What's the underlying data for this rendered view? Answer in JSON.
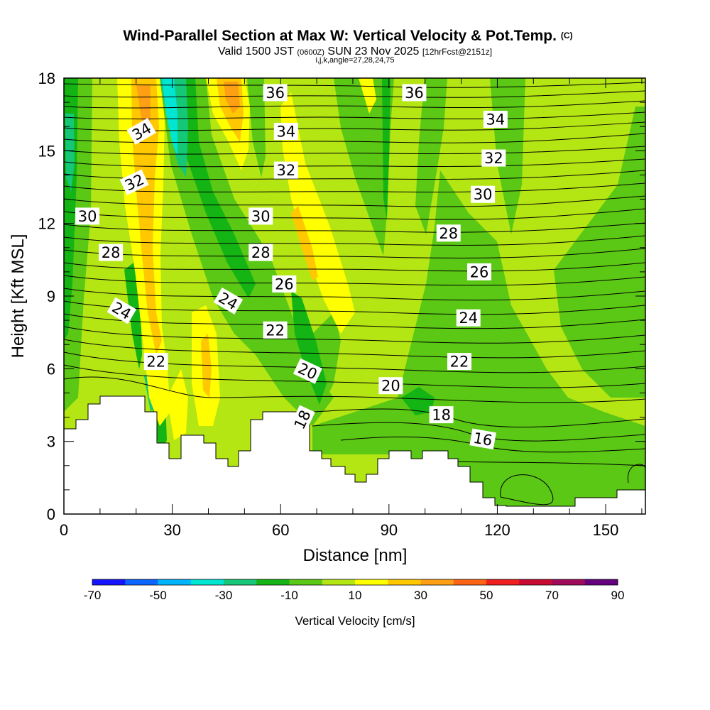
{
  "chart_data": {
    "type": "heatmap",
    "title": "Wind-Parallel Section at Max W: Vertical Velocity & Pot.Temp.",
    "title_mark": "(C)",
    "subtitle": {
      "valid_prefix": "Valid 1500 JST",
      "utc": "(0600Z)",
      "date": "SUN 23 Nov 2025",
      "forecast": "[12hrFcst@2151z]"
    },
    "subtitle2": "i,j,k,angle=27,28,24,75",
    "xlabel": "Distance [nm]",
    "ylabel": "Height [Kft MSL]",
    "xlim": [
      0,
      161
    ],
    "ylim": [
      0,
      18
    ],
    "x_ticks": [
      0,
      30,
      60,
      90,
      120,
      150
    ],
    "y_ticks": [
      0,
      3,
      6,
      9,
      12,
      15,
      18
    ],
    "colorbar": {
      "label": "Vertical Velocity [cm/s]",
      "tick_labels": [
        "-70",
        "-50",
        "-30",
        "-10",
        "10",
        "30",
        "50",
        "70",
        "90"
      ],
      "bounds": [
        -70,
        90
      ],
      "colors": [
        "#1414ff",
        "#0a64ff",
        "#00b4ff",
        "#00e6d2",
        "#14c878",
        "#14b414",
        "#5ac814",
        "#b4e614",
        "#ffff00",
        "#ffc800",
        "#ffa014",
        "#ff6414",
        "#f01e1e",
        "#c80a32",
        "#a00a5a",
        "#64007d"
      ]
    },
    "theta_labels": [
      {
        "text": "36",
        "x": 58.5,
        "y": 17.4,
        "angle": 0
      },
      {
        "text": "36",
        "x": 97,
        "y": 17.4,
        "angle": 0
      },
      {
        "text": "34",
        "x": 21.5,
        "y": 15.8,
        "angle": -30
      },
      {
        "text": "34",
        "x": 61.5,
        "y": 15.8,
        "angle": 0
      },
      {
        "text": "34",
        "x": 119.5,
        "y": 16.3,
        "angle": 0
      },
      {
        "text": "32",
        "x": 19.5,
        "y": 13.7,
        "angle": -25
      },
      {
        "text": "32",
        "x": 61.5,
        "y": 14.2,
        "angle": 0
      },
      {
        "text": "32",
        "x": 119,
        "y": 14.7,
        "angle": 0
      },
      {
        "text": "30",
        "x": 6.5,
        "y": 12.3,
        "angle": 0
      },
      {
        "text": "30",
        "x": 54.5,
        "y": 12.3,
        "angle": 0
      },
      {
        "text": "30",
        "x": 116,
        "y": 13.2,
        "angle": 0
      },
      {
        "text": "28",
        "x": 13,
        "y": 10.8,
        "angle": 0
      },
      {
        "text": "28",
        "x": 54.5,
        "y": 10.8,
        "angle": 0
      },
      {
        "text": "28",
        "x": 106.5,
        "y": 11.6,
        "angle": 0
      },
      {
        "text": "26",
        "x": 61,
        "y": 9.5,
        "angle": 0
      },
      {
        "text": "26",
        "x": 115,
        "y": 10.0,
        "angle": 0
      },
      {
        "text": "24",
        "x": 16,
        "y": 8.4,
        "angle": 30
      },
      {
        "text": "24",
        "x": 45.5,
        "y": 8.8,
        "angle": 30
      },
      {
        "text": "24",
        "x": 112,
        "y": 8.1,
        "angle": 0
      },
      {
        "text": "22",
        "x": 25.5,
        "y": 6.3,
        "angle": 0
      },
      {
        "text": "22",
        "x": 58.5,
        "y": 7.6,
        "angle": 0
      },
      {
        "text": "22",
        "x": 109.5,
        "y": 6.3,
        "angle": 0
      },
      {
        "text": "20",
        "x": 67.5,
        "y": 5.9,
        "angle": 25
      },
      {
        "text": "20",
        "x": 90.5,
        "y": 5.3,
        "angle": 0
      },
      {
        "text": "18",
        "x": 66,
        "y": 3.9,
        "angle": -65
      },
      {
        "text": "18",
        "x": 104.5,
        "y": 4.1,
        "angle": 0
      },
      {
        "text": "16",
        "x": 116,
        "y": 3.1,
        "angle": 10
      }
    ]
  }
}
